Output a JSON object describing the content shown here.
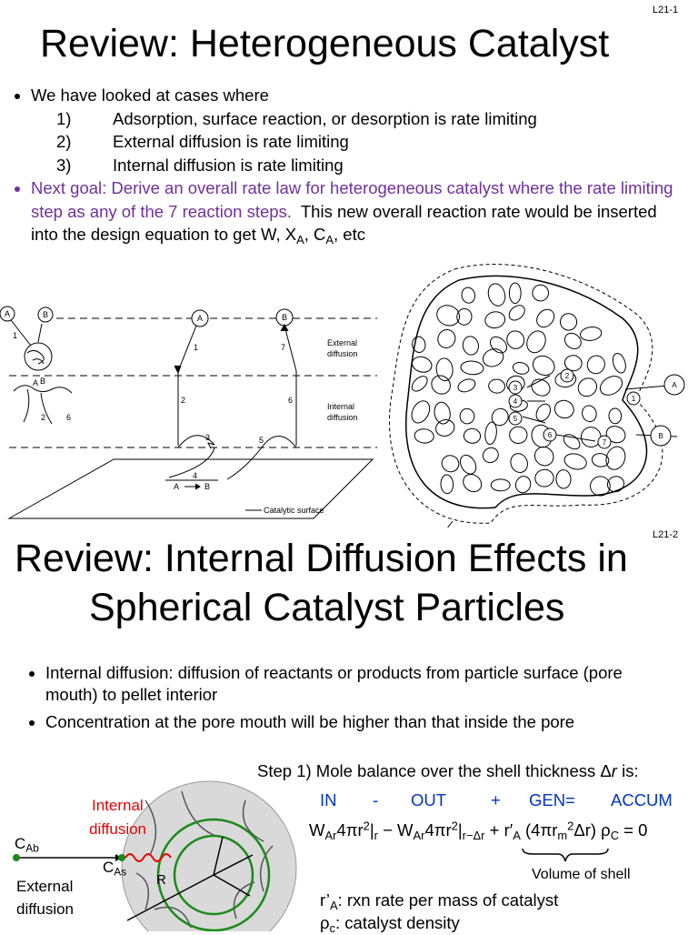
{
  "slide1": {
    "page_label": "L21-1",
    "title": "Review: Heterogeneous Catalyst",
    "intro": "We have looked at cases where",
    "cases": [
      {
        "num": "1)",
        "text": "Adsorption, surface reaction, or desorption is rate limiting"
      },
      {
        "num": "2)",
        "text": "External diffusion is rate limiting"
      },
      {
        "num": "3)",
        "text": "Internal diffusion is rate limiting"
      }
    ],
    "next_goal": "Next goal: Derive an overall rate law for heterogeneous catalyst where the rate limiting step as any of the 7 reaction steps.",
    "design_note": [
      {
        "t": "This new overall reaction rate would be inserted into the design equation to get W, X"
      },
      {
        "sub": "A"
      },
      {
        "t": ", C"
      },
      {
        "sub": "A"
      },
      {
        "t": ", etc"
      }
    ],
    "left_figure": {
      "inset_labels": [
        "A",
        "B",
        "1",
        "A",
        "B",
        "2",
        "6"
      ],
      "species": [
        "A",
        "B"
      ],
      "steps": [
        "1",
        "7",
        "2",
        "6",
        "3",
        "5",
        "4"
      ],
      "reaction": "A",
      "product": "B",
      "external_label": [
        "External",
        "diffusion"
      ],
      "internal_label": [
        "Internal",
        "diffusion"
      ],
      "surface_label": "Catalytic surface"
    },
    "right_figure": {
      "steps": [
        "1",
        "2",
        "3",
        "4",
        "5",
        "6",
        "7"
      ],
      "species": [
        "A",
        "B"
      ]
    }
  },
  "slide2": {
    "page_label": "L21-2",
    "title_lines": [
      "Review: Internal Diffusion Effects in",
      "Spherical Catalyst Particles"
    ],
    "bullets": [
      "Internal diffusion: diffusion of reactants or products from particle surface (pore mouth) to pellet interior",
      "Concentration at the pore mouth will be higher than that inside the pore"
    ],
    "step1": [
      {
        "t": "Step 1) Mole balance over the shell thickness Δ"
      },
      {
        "i": "r"
      },
      {
        "t": " is:"
      }
    ],
    "balance_terms": [
      "IN",
      "-",
      "OUT",
      "+",
      "GEN",
      "=",
      "ACCUM"
    ],
    "equation": [
      {
        "t": "W"
      },
      {
        "sub": "Ar"
      },
      {
        "t": "4πr"
      },
      {
        "sup": "2"
      },
      {
        "t": "|"
      },
      {
        "sub": "r"
      },
      {
        "t": " − W"
      },
      {
        "sub": "Ar"
      },
      {
        "t": "4πr"
      },
      {
        "sup": "2"
      },
      {
        "t": "|"
      },
      {
        "sub": "r−Δr"
      },
      {
        "t": " + r′"
      },
      {
        "sub": "A"
      },
      {
        "t": " (4πr"
      },
      {
        "sub": "m"
      },
      {
        "sup": "2"
      },
      {
        "t": "Δr) ρ"
      },
      {
        "sub": "C"
      },
      {
        "t": " = 0"
      }
    ],
    "brace_label": "Volume of shell",
    "definitions": [
      [
        {
          "t": "r’"
        },
        {
          "sub": "A"
        },
        {
          "t": ": rxn rate per mass of catalyst"
        }
      ],
      [
        {
          "t": "ρ"
        },
        {
          "sub": "c"
        },
        {
          "t": ": catalyst density"
        }
      ]
    ],
    "figure": {
      "internal_label": [
        "Internal",
        "diffusion"
      ],
      "bulk_conc": [
        {
          "t": "C"
        },
        {
          "sub": "Ab"
        }
      ],
      "surface_conc": [
        {
          "t": "C"
        },
        {
          "sub": "As"
        }
      ],
      "radius": "R",
      "external_label": [
        "External",
        "diffusion"
      ]
    }
  }
}
